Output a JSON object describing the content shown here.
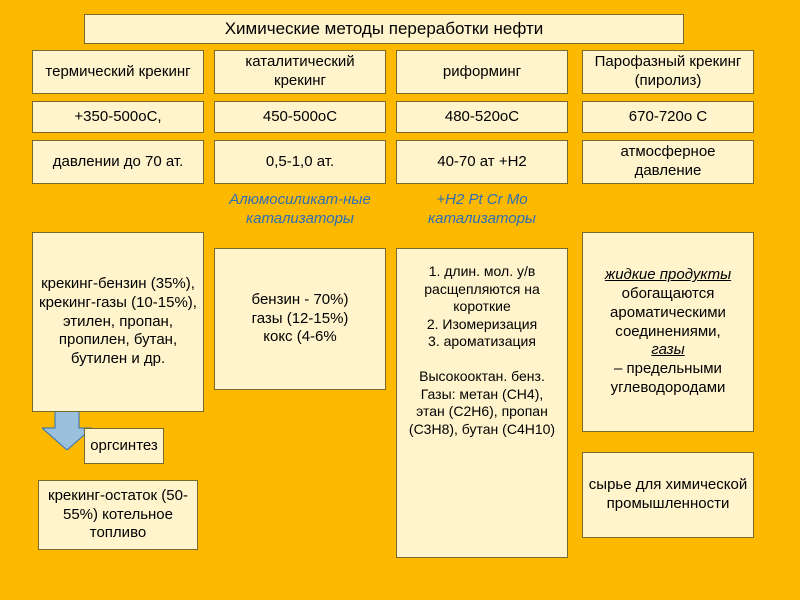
{
  "colors": {
    "background": "#fcb900",
    "box_fill": "#fff4cc",
    "box_border": "#7a6a2a",
    "text": "#000000",
    "accent_blue": "#2e6eb5",
    "arrow_fill": "#9bc0dd",
    "arrow_stroke": "#2e6eb5"
  },
  "font": {
    "base_size": 15,
    "title_size": 17
  },
  "title": "Химические методы переработки нефти",
  "columns": {
    "c1": {
      "name": "термический крекинг",
      "temp": "+350-500оС,",
      "pressure": "давлении до 70 ат.",
      "cat": "",
      "products": "крекинг-бензин (35%),\nкрекинг-газы (10-15%),\nэтилен, пропан, пропилен, бутан, бутилен и др.",
      "products_blue_from_line": 3,
      "sub1": "оргсинтез",
      "sub2": "крекинг-остаток (50-55%) котельное топливо"
    },
    "c2": {
      "name": "каталитический крекинг",
      "temp": "450-500оС",
      "pressure": "0,5-1,0 ат.",
      "cat": "Алюмосиликат-ные катализаторы",
      "products": "бензин - 70%)\nгазы (12-15%)\nкокс (4-6%"
    },
    "c3": {
      "name": "риформинг",
      "temp": "480-520оС",
      "pressure": "40-70 ат +Н2",
      "cat": "+Н2 Pt Cr Mo катализаторы",
      "products": "1. длин. мол. у/в расщепляются на короткие\n2. Изомеризация\n3. ароматизация\n\nВысокооктан. бенз.\nГазы: метан (СН4),\nэтан (С2Н6), пропан (С3Н8), бутан (С4Н10)"
    },
    "c4": {
      "name": "Парофазный крекинг (пиролиз)",
      "temp": "670-720о С",
      "pressure": "атмосферное давление",
      "products": "жидкие продукты обогащаются ароматическими соединениями, газы – предельными углеводородами",
      "products_italic_underline_words": [
        "жидкие продукты",
        "газы"
      ],
      "use": "сырье для химической промышленности"
    }
  }
}
